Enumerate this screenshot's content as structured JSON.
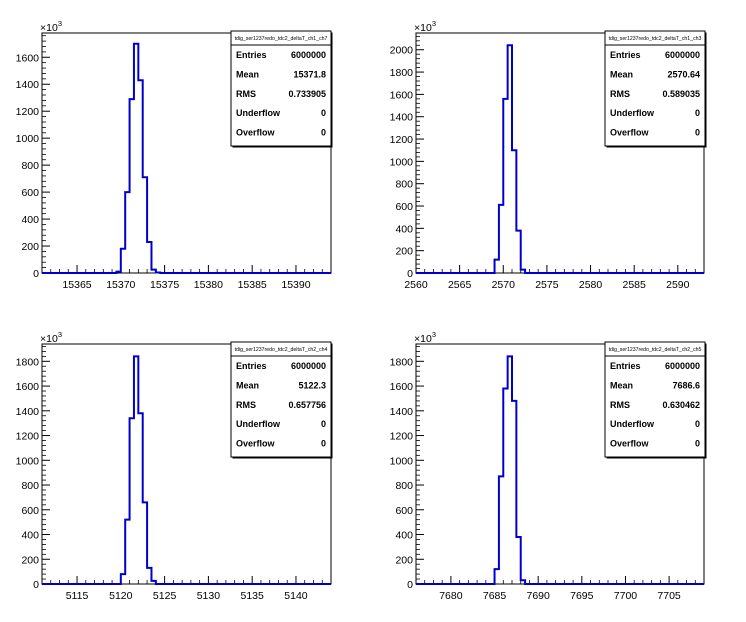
{
  "chart_data": [
    {
      "type": "histogram",
      "title": "tdig_ser1237redo_tdc2_deltaT_ch1_ch7",
      "multiplier_label": "×10",
      "multiplier_exp": "3",
      "xlim": [
        15361,
        15394
      ],
      "ylim": [
        0,
        1780
      ],
      "xticks": [
        15365,
        15370,
        15375,
        15380,
        15385,
        15390
      ],
      "yticks": [
        0,
        200,
        400,
        600,
        800,
        1000,
        1200,
        1400,
        1600
      ],
      "bin_width": 0.5,
      "bins_start": 15369.5,
      "values": [
        10,
        180,
        600,
        1290,
        1700,
        1430,
        710,
        230,
        25,
        4
      ],
      "line_color": "#0000cc",
      "stats": [
        {
          "label": "Entries",
          "value": "6000000"
        },
        {
          "label": "Mean",
          "value": "15371.8"
        },
        {
          "label": "RMS",
          "value": "0.733905"
        },
        {
          "label": "Underflow",
          "value": "0"
        },
        {
          "label": "Overflow",
          "value": "0"
        }
      ]
    },
    {
      "type": "histogram",
      "title": "tdig_ser1237redo_tdc2_deltaT_ch1_ch3",
      "multiplier_label": "×10",
      "multiplier_exp": "3",
      "xlim": [
        2560,
        2593
      ],
      "ylim": [
        0,
        2150
      ],
      "xticks": [
        2560,
        2565,
        2570,
        2575,
        2580,
        2585,
        2590
      ],
      "yticks": [
        0,
        200,
        400,
        600,
        800,
        1000,
        1200,
        1400,
        1600,
        1800,
        2000
      ],
      "bin_width": 0.5,
      "bins_start": 2569,
      "values": [
        120,
        610,
        1560,
        2040,
        1100,
        380,
        30
      ],
      "line_color": "#0000cc",
      "stats": [
        {
          "label": "Entries",
          "value": "6000000"
        },
        {
          "label": "Mean",
          "value": "2570.64"
        },
        {
          "label": "RMS",
          "value": "0.589035"
        },
        {
          "label": "Underflow",
          "value": "0"
        },
        {
          "label": "Overflow",
          "value": "0"
        }
      ]
    },
    {
      "type": "histogram",
      "title": "tdig_ser1237redo_tdc2_deltaT_ch2_ch4",
      "multiplier_label": "×10",
      "multiplier_exp": "3",
      "xlim": [
        5111,
        5144
      ],
      "ylim": [
        0,
        1940
      ],
      "xticks": [
        5115,
        5120,
        5125,
        5130,
        5135,
        5140
      ],
      "yticks": [
        0,
        200,
        400,
        600,
        800,
        1000,
        1200,
        1400,
        1600,
        1800
      ],
      "bin_width": 0.5,
      "bins_start": 5120,
      "values": [
        80,
        520,
        1340,
        1840,
        1380,
        660,
        130,
        25
      ],
      "line_color": "#0000cc",
      "stats": [
        {
          "label": "Entries",
          "value": "6000000"
        },
        {
          "label": "Mean",
          "value": "5122.3"
        },
        {
          "label": "RMS",
          "value": "0.657756"
        },
        {
          "label": "Underflow",
          "value": "0"
        },
        {
          "label": "Overflow",
          "value": "0"
        }
      ]
    },
    {
      "type": "histogram",
      "title": "tdig_ser1237redo_tdc2_deltaT_ch2_ch5",
      "multiplier_label": "×10",
      "multiplier_exp": "3",
      "xlim": [
        7676,
        7709
      ],
      "ylim": [
        0,
        1940
      ],
      "xticks": [
        7680,
        7685,
        7690,
        7695,
        7700,
        7705
      ],
      "yticks": [
        0,
        200,
        400,
        600,
        800,
        1000,
        1200,
        1400,
        1600,
        1800
      ],
      "bin_width": 0.5,
      "bins_start": 7685,
      "values": [
        120,
        870,
        1580,
        1840,
        1480,
        380,
        30
      ],
      "line_color": "#0000cc",
      "stats": [
        {
          "label": "Entries",
          "value": "6000000"
        },
        {
          "label": "Mean",
          "value": "7686.6"
        },
        {
          "label": "RMS",
          "value": "0.630462"
        },
        {
          "label": "Underflow",
          "value": "0"
        },
        {
          "label": "Overflow",
          "value": "0"
        }
      ]
    }
  ]
}
